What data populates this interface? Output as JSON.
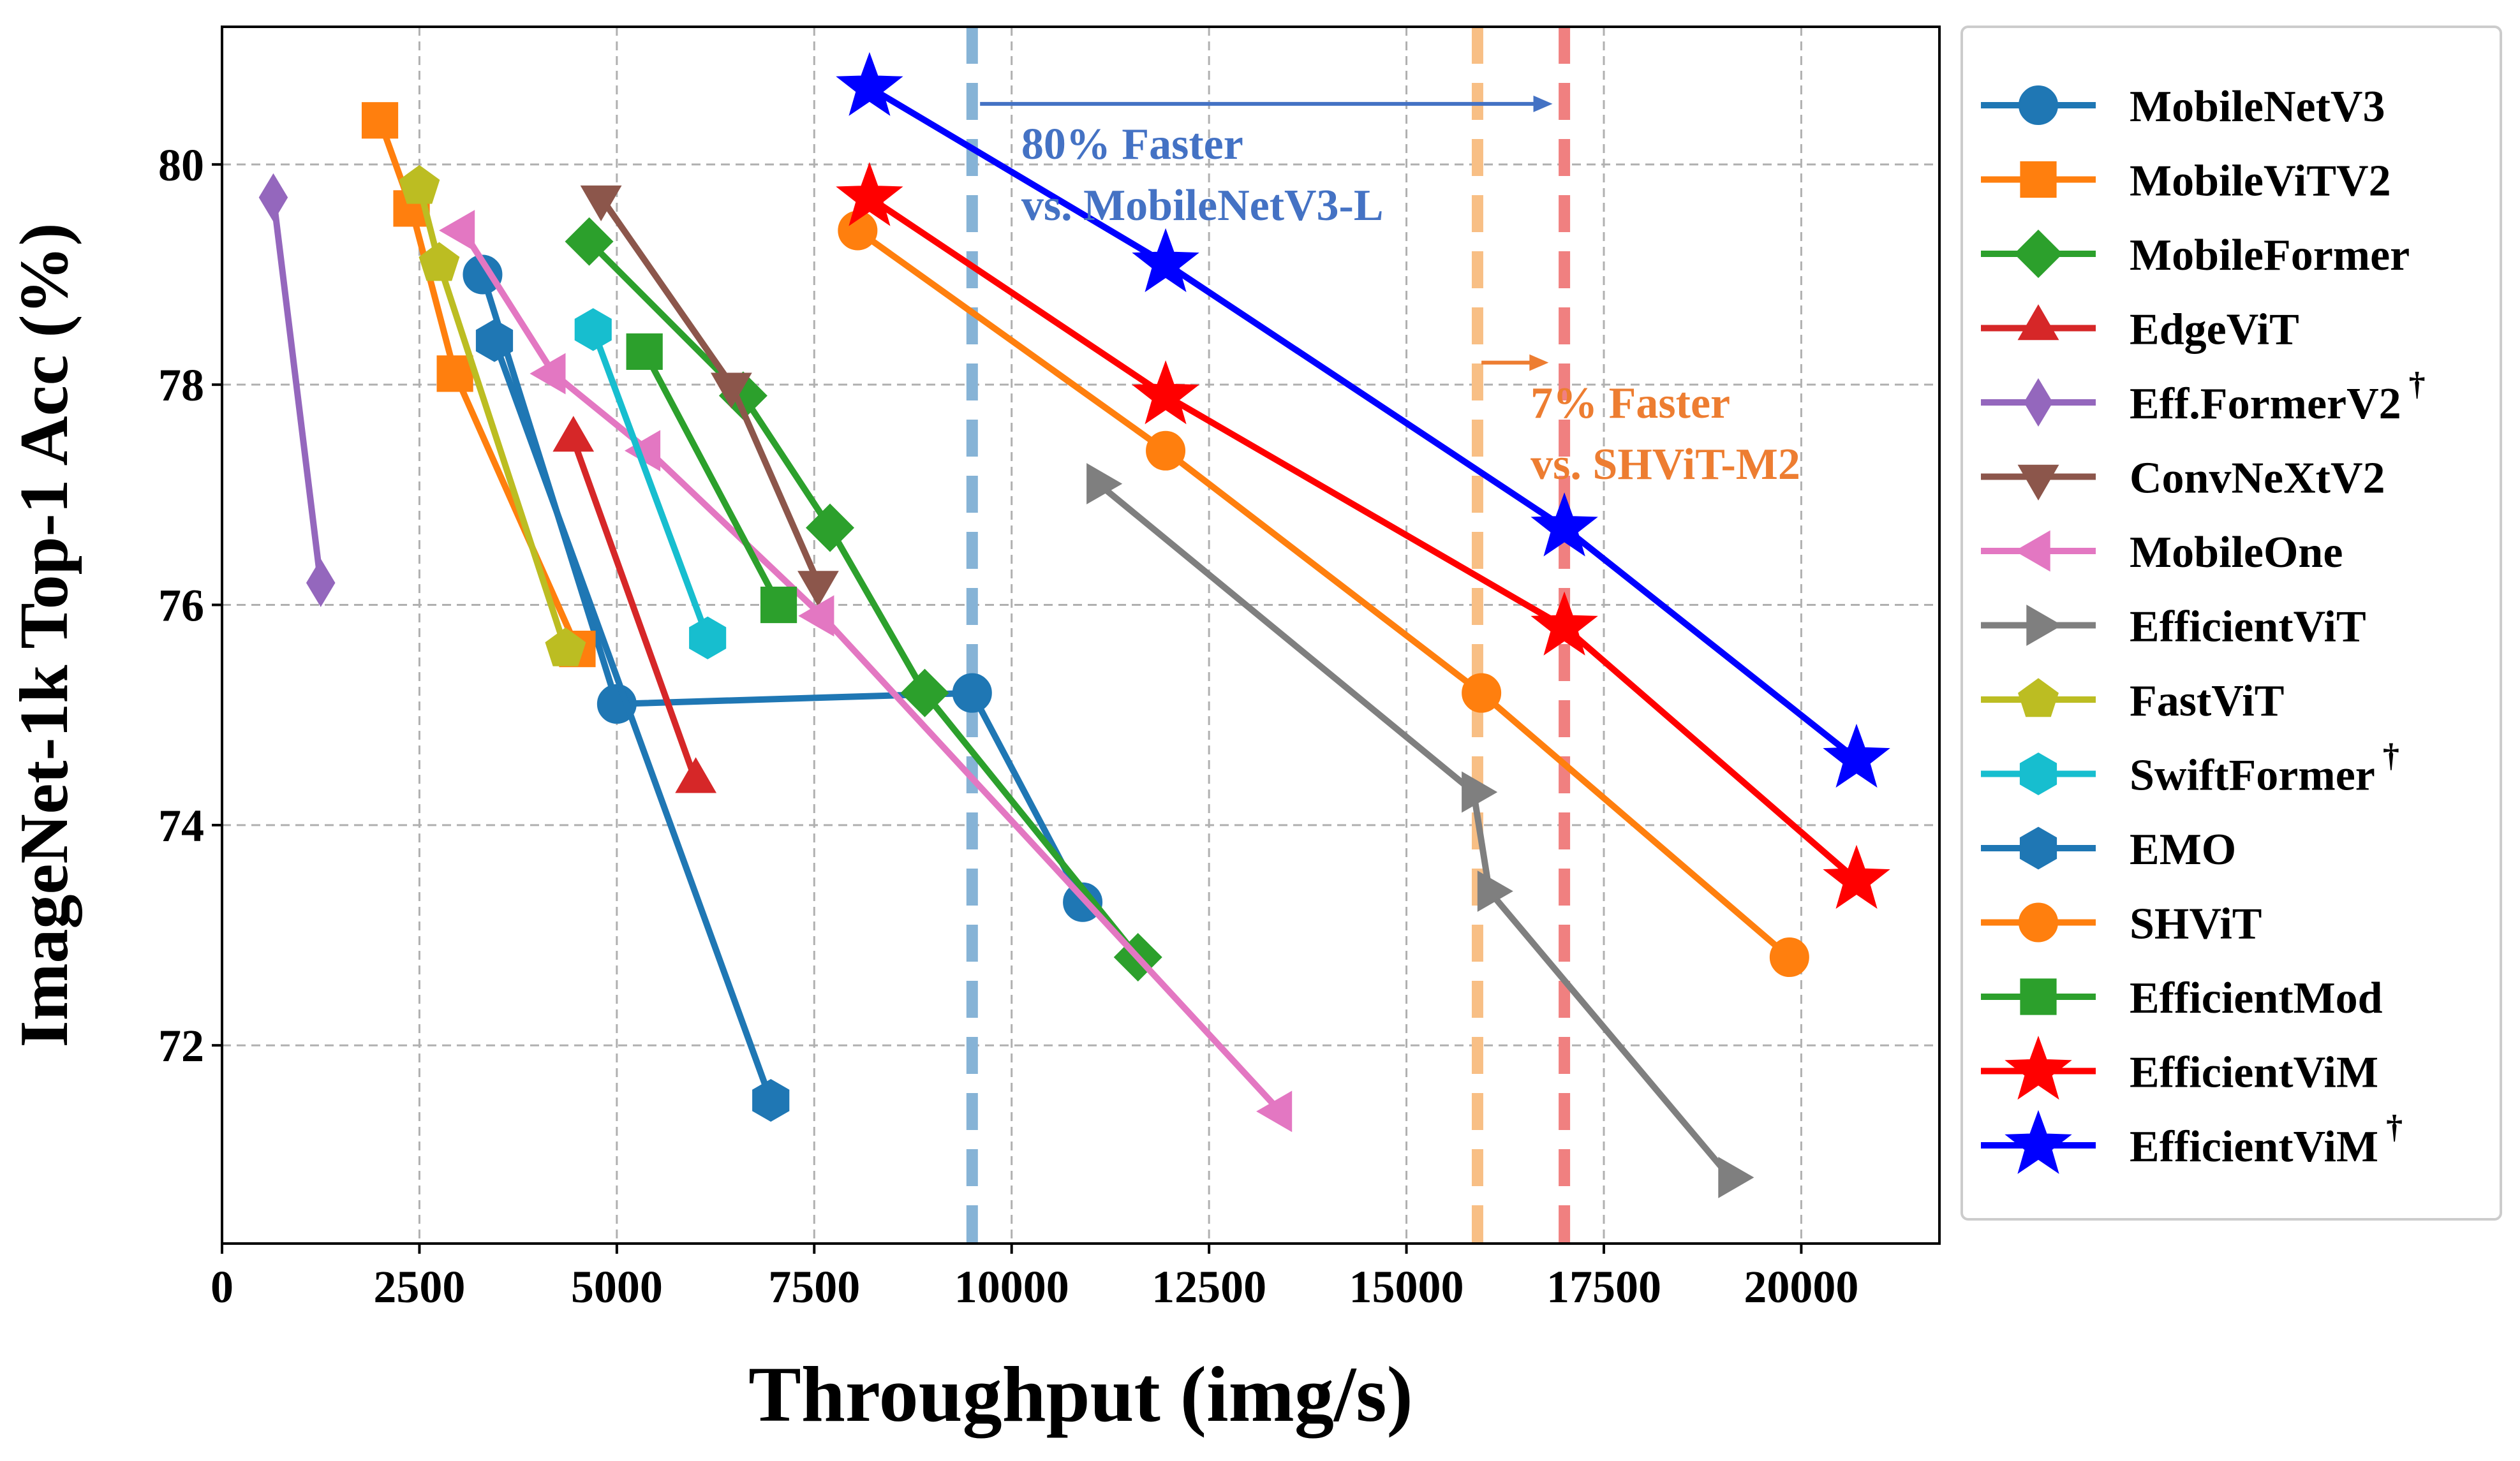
{
  "chart_data": {
    "type": "line",
    "title": "",
    "xlabel": "Throughput (img/s)",
    "ylabel": "ImageNet-1k Top-1 Acc (%)",
    "xlim": [
      0,
      21750
    ],
    "ylim": [
      70.2,
      81.25
    ],
    "xticks": [
      0,
      2500,
      5000,
      7500,
      10000,
      12500,
      15000,
      17500,
      20000
    ],
    "yticks": [
      72,
      74,
      76,
      78,
      80
    ],
    "grid": true,
    "legend_position": "outside-right",
    "vlines": [
      {
        "x": 9500,
        "color": "#86b3d6"
      },
      {
        "x": 15900,
        "color": "#f8bf85"
      },
      {
        "x": 17000,
        "color": "#f08080"
      }
    ],
    "annotations": [
      {
        "line1": "80% Faster",
        "line2": "vs. MobileNetV3-L",
        "color": "#4472c4",
        "arrow_from": 9600,
        "arrow_to": 16850,
        "arrow_y": 80.55,
        "text_x": 11900,
        "text_y": 80.05
      },
      {
        "line1": "7% Faster",
        "line2": "vs. SHViT-M2",
        "color": "#ed7d31",
        "arrow_from": 15950,
        "arrow_to": 16800,
        "arrow_y": 78.2,
        "text_x": 18350,
        "text_y": 77.7
      }
    ],
    "series": [
      {
        "name": "MobileNetV3",
        "color": "#1f77b4",
        "marker": "circle",
        "x": [
          3300,
          5000,
          9500,
          10900
        ],
        "y": [
          79.0,
          75.1,
          75.2,
          73.3
        ]
      },
      {
        "name": "MobileViTV2",
        "color": "#ff7f0e",
        "marker": "square",
        "x": [
          2000,
          2400,
          2950,
          4500
        ],
        "y": [
          80.4,
          79.6,
          78.1,
          75.6
        ]
      },
      {
        "name": "MobileFormer",
        "color": "#2ca02c",
        "marker": "diamond",
        "x": [
          4650,
          6600,
          7700,
          8900,
          11600
        ],
        "y": [
          79.3,
          77.9,
          76.7,
          75.2,
          72.8
        ]
      },
      {
        "name": "EdgeViT",
        "color": "#d62728",
        "marker": "triangle-up",
        "x": [
          4450,
          6000
        ],
        "y": [
          77.5,
          74.4
        ]
      },
      {
        "name": "Eff.FormerV2",
        "sup": "†",
        "color": "#9467bd",
        "marker": "thin-diamond",
        "x": [
          650,
          1250
        ],
        "y": [
          79.7,
          76.2
        ]
      },
      {
        "name": "ConvNeXtV2",
        "color": "#8c564b",
        "marker": "triangle-down",
        "x": [
          4800,
          6450,
          7550
        ],
        "y": [
          79.7,
          78.0,
          76.2
        ]
      },
      {
        "name": "MobileOne",
        "color": "#e377c2",
        "marker": "triangle-left",
        "x": [
          3050,
          4200,
          5400,
          7600,
          13400
        ],
        "y": [
          79.4,
          78.1,
          77.4,
          75.9,
          71.4
        ]
      },
      {
        "name": "EfficientViT",
        "color": "#7f7f7f",
        "marker": "triangle-right",
        "x": [
          11100,
          15850,
          16050,
          19100
        ],
        "y": [
          77.1,
          74.3,
          73.4,
          70.8
        ]
      },
      {
        "name": "FastViT",
        "color": "#bcbd22",
        "marker": "pentagon",
        "x": [
          2500,
          2750,
          4350
        ],
        "y": [
          79.8,
          79.1,
          75.6
        ]
      },
      {
        "name": "SwiftFormer",
        "sup": "†",
        "color": "#17becf",
        "marker": "hexagon",
        "x": [
          4700,
          6150
        ],
        "y": [
          78.5,
          75.7
        ]
      },
      {
        "name": "EMO",
        "color": "#1f77b4",
        "marker": "hexagon",
        "x": [
          3450,
          6950
        ],
        "y": [
          78.4,
          71.5
        ]
      },
      {
        "name": "SHViT",
        "color": "#ff7f0e",
        "marker": "circle",
        "x": [
          8050,
          11950,
          15950,
          19850
        ],
        "y": [
          79.4,
          77.4,
          75.2,
          72.8
        ]
      },
      {
        "name": "EfficientMod",
        "color": "#2ca02c",
        "marker": "square",
        "x": [
          5350,
          7050
        ],
        "y": [
          78.3,
          76.0
        ]
      },
      {
        "name": "EfficientViM",
        "color": "#ff0000",
        "marker": "star",
        "x": [
          8200,
          11950,
          17000,
          20700
        ],
        "y": [
          79.7,
          77.9,
          75.8,
          73.5
        ]
      },
      {
        "name": "EfficientViM",
        "sup": "†",
        "color": "#0000ff",
        "marker": "star",
        "x": [
          8200,
          11950,
          17000,
          20700
        ],
        "y": [
          80.7,
          79.1,
          76.7,
          74.6
        ]
      }
    ]
  }
}
